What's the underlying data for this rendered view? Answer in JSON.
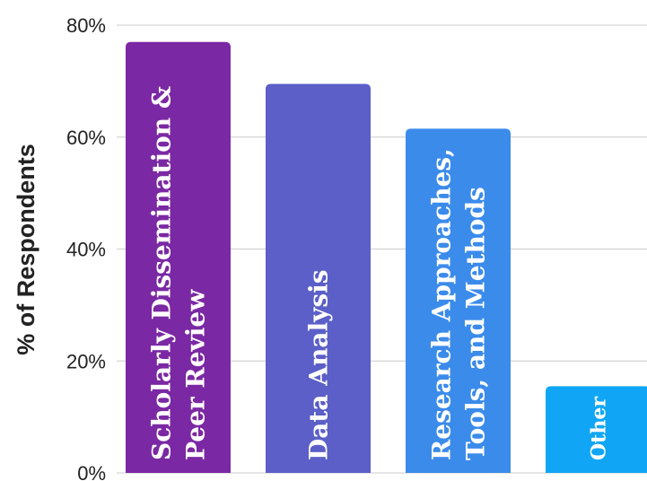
{
  "chart_data": {
    "type": "bar",
    "ylabel": "% of Respondents",
    "ylim": [
      0,
      80
    ],
    "yticks": [
      "0%",
      "20%",
      "40%",
      "60%",
      "80%"
    ],
    "grid": true,
    "categories": [
      [
        "Scholarly Dissemination &",
        "Peer Review"
      ],
      [
        "Data Analysis"
      ],
      [
        "Research Approaches,",
        "Tools, and Methods"
      ],
      [
        "Other"
      ]
    ],
    "values": [
      77,
      69.5,
      61.5,
      15.5
    ],
    "colors": [
      "#7b28a4",
      "#5b5fc7",
      "#3b8beb",
      "#10a6f5"
    ]
  }
}
